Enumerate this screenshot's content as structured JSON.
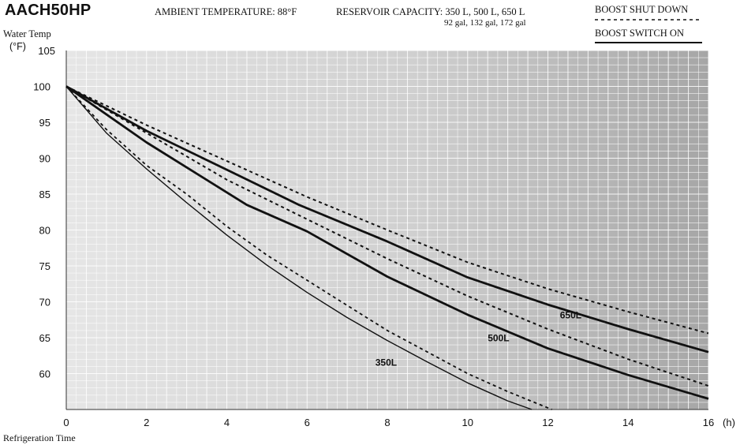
{
  "header": {
    "model": "AACH50HP",
    "ambient": "AMBIENT TEMPERATURE: 88°F",
    "reservoir_line1": "RESERVOIR CAPACITY: 350 L, 500 L, 650 L",
    "reservoir_line2": "92 gal, 132 gal, 172 gal",
    "legend_dashed": "BOOST SHUT DOWN",
    "legend_solid": "BOOST  SWITCH ON"
  },
  "chart_data": {
    "type": "line",
    "title": "AACH50HP",
    "ylabel_line1": "Water Temp",
    "ylabel_line2": "(°F)",
    "xlabel": "Refrigeration Time",
    "x_unit": "(h)",
    "xlim": [
      0,
      16
    ],
    "ylim": [
      55,
      105
    ],
    "x_ticks": [
      0,
      2,
      4,
      6,
      8,
      10,
      12,
      14,
      16
    ],
    "y_ticks": [
      60,
      65,
      70,
      75,
      80,
      85,
      90,
      95,
      100,
      105
    ],
    "grid": true,
    "legend": [
      {
        "label": "BOOST SHUT DOWN",
        "style": "dashed"
      },
      {
        "label": "BOOST  SWITCH ON",
        "style": "solid"
      }
    ],
    "series": [
      {
        "capacity": "650L",
        "style": "dashed",
        "points": [
          [
            0,
            100
          ],
          [
            2,
            94.6
          ],
          [
            4,
            89.6
          ],
          [
            6,
            84.6
          ],
          [
            8,
            80
          ],
          [
            10,
            75.5
          ],
          [
            12,
            71.8
          ],
          [
            14,
            68.6
          ],
          [
            16,
            65.6
          ]
        ]
      },
      {
        "capacity": "650L",
        "style": "solid",
        "points": [
          [
            0,
            100
          ],
          [
            2,
            93.8
          ],
          [
            4,
            88.4
          ],
          [
            5.8,
            83.5
          ],
          [
            8,
            78.4
          ],
          [
            10,
            73.4
          ],
          [
            12,
            69.6
          ],
          [
            14,
            66.2
          ],
          [
            16,
            63
          ]
        ]
      },
      {
        "capacity": "500L",
        "style": "dashed",
        "points": [
          [
            0,
            100
          ],
          [
            2,
            93.5
          ],
          [
            4,
            87
          ],
          [
            6,
            81.5
          ],
          [
            8,
            76
          ],
          [
            10,
            70.8
          ],
          [
            12,
            66.2
          ],
          [
            14,
            62
          ],
          [
            16,
            58.3
          ]
        ]
      },
      {
        "capacity": "500L",
        "style": "solid",
        "points": [
          [
            0,
            100
          ],
          [
            2,
            92.2
          ],
          [
            4.5,
            83.5
          ],
          [
            6,
            79.8
          ],
          [
            8,
            73.5
          ],
          [
            10,
            68.2
          ],
          [
            12,
            63.5
          ],
          [
            14,
            59.8
          ],
          [
            16,
            56.5
          ]
        ]
      },
      {
        "capacity": "350L",
        "style": "dashed",
        "points": [
          [
            0,
            100
          ],
          [
            1,
            94
          ],
          [
            2,
            89
          ],
          [
            3,
            85
          ],
          [
            4,
            80.5
          ],
          [
            5,
            76.5
          ],
          [
            6,
            73
          ],
          [
            7,
            69.5
          ],
          [
            8,
            66
          ],
          [
            9,
            63
          ],
          [
            10,
            60
          ],
          [
            11,
            57.5
          ],
          [
            12.1,
            55
          ]
        ]
      },
      {
        "capacity": "350L",
        "style": "solid",
        "points": [
          [
            0,
            100
          ],
          [
            1,
            93.5
          ],
          [
            2,
            88.5
          ],
          [
            3,
            83.8
          ],
          [
            4,
            79.3
          ],
          [
            5,
            75.1
          ],
          [
            6,
            71.3
          ],
          [
            7,
            67.8
          ],
          [
            8,
            64.6
          ],
          [
            9,
            61.6
          ],
          [
            10,
            58.7
          ],
          [
            11,
            56.2
          ],
          [
            11.6,
            55
          ]
        ]
      }
    ],
    "curve_labels": [
      {
        "text": "650L",
        "x": 12.3,
        "y": 67.7
      },
      {
        "text": "500L",
        "x": 10.5,
        "y": 64.5
      },
      {
        "text": "350L",
        "x": 7.7,
        "y": 61.1
      }
    ]
  }
}
